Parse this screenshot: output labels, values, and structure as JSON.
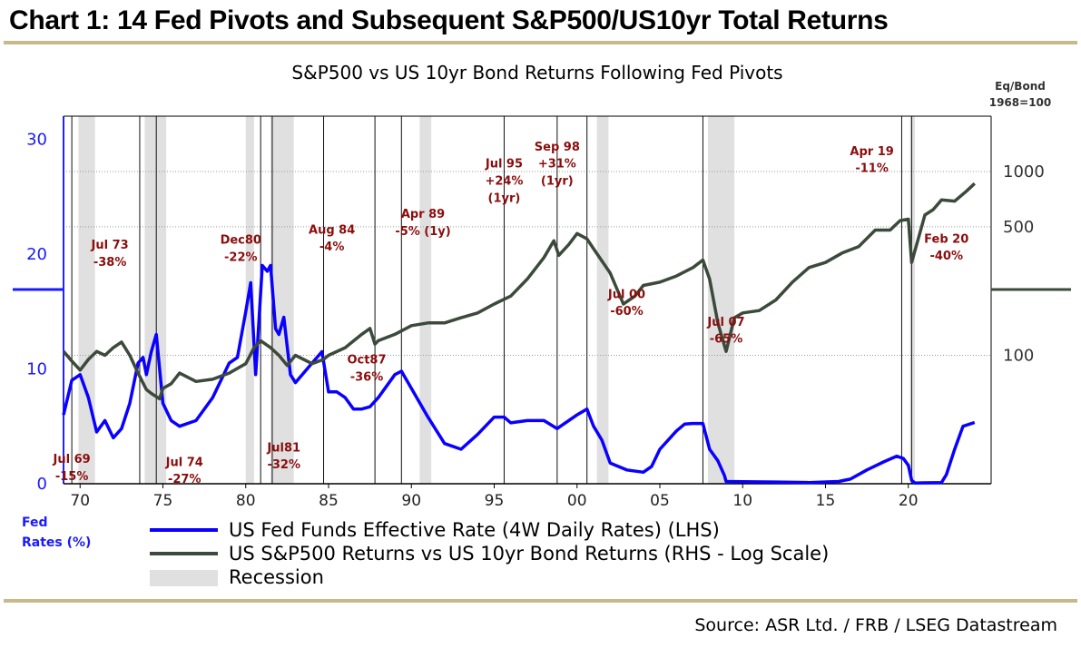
{
  "header": {
    "title": "Chart 1: 14 Fed Pivots and Subsequent S&P500/US10yr Total Returns"
  },
  "footer": {
    "source": "Source: ASR Ltd. / FRB / LSEG Datastream"
  },
  "colors": {
    "fed": "#0a00ff",
    "ratio": "#3b4a3b",
    "recession": "#e0e0e0",
    "annotation": "#8b0d0d",
    "gold": "#c8b98a"
  },
  "chart_data": {
    "type": "line",
    "title": "S&P500 vs US 10yr Bond Returns Following Fed Pivots",
    "left_axis": {
      "label_line1": "Fed",
      "label_line2": "Rates (%)",
      "range": [
        0,
        32
      ],
      "ticks": [
        0,
        10,
        20,
        30
      ]
    },
    "right_axis": {
      "label_line1": "Eq/Bond",
      "label_line2": "1968=100",
      "scale": "log",
      "range": [
        20,
        2000
      ],
      "ticks": [
        {
          "value": 100,
          "label": "100"
        },
        {
          "value": 500,
          "label": "500"
        },
        {
          "value": 1000,
          "label": "1000"
        }
      ]
    },
    "x_axis": {
      "range": [
        1969,
        2025
      ],
      "ticks": [
        {
          "value": 1970,
          "label": "70"
        },
        {
          "value": 1975,
          "label": "75"
        },
        {
          "value": 1980,
          "label": "80"
        },
        {
          "value": 1985,
          "label": "85"
        },
        {
          "value": 1990,
          "label": "90"
        },
        {
          "value": 1995,
          "label": "95"
        },
        {
          "value": 2000,
          "label": "00"
        },
        {
          "value": 2005,
          "label": "05"
        },
        {
          "value": 2010,
          "label": "10"
        },
        {
          "value": 2015,
          "label": "15"
        },
        {
          "value": 2020,
          "label": "20"
        }
      ]
    },
    "recessions": [
      [
        1969.9,
        1970.9
      ],
      [
        1973.9,
        1975.2
      ],
      [
        1980.0,
        1980.5
      ],
      [
        1981.5,
        1982.9
      ],
      [
        1990.5,
        1991.2
      ],
      [
        2001.2,
        2001.9
      ],
      [
        2007.9,
        2009.5
      ],
      [
        2020.1,
        2020.4
      ]
    ],
    "pivots": [
      1969.5,
      1973.6,
      1974.6,
      1980.9,
      1981.6,
      1984.7,
      1987.8,
      1989.4,
      1995.6,
      1998.8,
      2000.6,
      2007.6,
      2019.6,
      2020.2
    ],
    "annotations": [
      {
        "date": 1969.5,
        "y_val": 26,
        "lines": [
          "Jul 69",
          "-15%"
        ]
      },
      {
        "date": 1971.8,
        "y_val": 380,
        "lines": [
          "Jul 73",
          "-38%"
        ]
      },
      {
        "date": 1976.3,
        "y_val": 25,
        "lines": [
          "Jul 74",
          "-27%"
        ]
      },
      {
        "date": 1979.7,
        "y_val": 405,
        "lines": [
          "Dec80",
          "-22%"
        ]
      },
      {
        "date": 1982.3,
        "y_val": 30,
        "lines": [
          "Jul81",
          "-32%"
        ]
      },
      {
        "date": 1985.2,
        "y_val": 460,
        "lines": [
          "Aug 84",
          "-4%"
        ]
      },
      {
        "date": 1987.3,
        "y_val": 90,
        "lines": [
          "Oct87",
          "-36%"
        ]
      },
      {
        "date": 1990.7,
        "y_val": 560,
        "lines": [
          "Apr 89",
          "-5% (1y)"
        ]
      },
      {
        "date": 1995.6,
        "y_val": 1050,
        "lines": [
          "Jul 95",
          "+24%",
          "(1yr)"
        ]
      },
      {
        "date": 1998.8,
        "y_val": 1300,
        "lines": [
          "Sep 98",
          "+31%",
          "(1yr)"
        ]
      },
      {
        "date": 2003.0,
        "y_val": 205,
        "lines": [
          "Jul 00",
          "-60%"
        ]
      },
      {
        "date": 2009.0,
        "y_val": 145,
        "lines": [
          "Jul 07",
          "-65%"
        ]
      },
      {
        "date": 2017.8,
        "y_val": 1230,
        "lines": [
          "Apr 19",
          "-11%"
        ]
      },
      {
        "date": 2022.3,
        "y_val": 410,
        "lines": [
          "Feb 20",
          "-40%"
        ]
      }
    ],
    "series": [
      {
        "name": "US Fed Funds Effective Rate (4W Daily Rates) (LHS)",
        "axis": "left",
        "x": [
          1969.0,
          1969.5,
          1970.0,
          1970.5,
          1971.0,
          1971.5,
          1972.0,
          1972.5,
          1973.0,
          1973.5,
          1973.8,
          1974.0,
          1974.3,
          1974.6,
          1975.0,
          1975.5,
          1976.0,
          1977.0,
          1978.0,
          1979.0,
          1979.5,
          1980.0,
          1980.3,
          1980.6,
          1981.0,
          1981.3,
          1981.5,
          1981.8,
          1982.0,
          1982.3,
          1982.7,
          1983.0,
          1984.0,
          1984.6,
          1985.0,
          1985.5,
          1986.0,
          1986.5,
          1987.0,
          1987.5,
          1988.0,
          1989.0,
          1989.4,
          1990.0,
          1991.0,
          1992.0,
          1993.0,
          1994.0,
          1995.0,
          1995.6,
          1996.0,
          1997.0,
          1998.0,
          1998.8,
          1999.0,
          2000.0,
          2000.6,
          2001.0,
          2001.5,
          2002.0,
          2003.0,
          2004.0,
          2004.5,
          2005.0,
          2006.0,
          2006.5,
          2007.0,
          2007.6,
          2008.0,
          2008.5,
          2008.9,
          2009.0,
          2010.0,
          2012.0,
          2014.0,
          2015.8,
          2016.5,
          2017.5,
          2018.5,
          2019.3,
          2019.7,
          2020.0,
          2020.2,
          2020.4,
          2021.0,
          2022.0,
          2022.3,
          2022.8,
          2023.3,
          2024.0
        ],
        "values": [
          6.0,
          9.0,
          9.5,
          7.5,
          4.5,
          5.5,
          4.0,
          4.8,
          7.0,
          10.5,
          11.0,
          9.5,
          11.5,
          13.0,
          7.0,
          5.5,
          5.0,
          5.5,
          7.5,
          10.5,
          11.0,
          15.0,
          17.5,
          9.5,
          19.0,
          18.5,
          19.0,
          13.5,
          13.0,
          14.5,
          9.5,
          8.8,
          10.5,
          11.5,
          8.0,
          8.0,
          7.5,
          6.5,
          6.5,
          6.7,
          7.5,
          9.5,
          9.8,
          8.3,
          5.8,
          3.5,
          3.0,
          4.3,
          5.8,
          5.8,
          5.3,
          5.5,
          5.5,
          4.8,
          5.0,
          6.0,
          6.5,
          5.0,
          3.8,
          1.8,
          1.2,
          1.0,
          1.5,
          3.0,
          4.6,
          5.2,
          5.25,
          5.25,
          3.0,
          2.0,
          0.7,
          0.2,
          0.18,
          0.15,
          0.1,
          0.2,
          0.4,
          1.2,
          1.9,
          2.4,
          2.2,
          1.6,
          0.3,
          0.06,
          0.08,
          0.1,
          0.8,
          3.0,
          5.0,
          5.33
        ]
      },
      {
        "name": "US S&P500 Returns  vs US 10yr Bond Returns (RHS - Log Scale)",
        "axis": "right",
        "x": [
          1969.0,
          1969.5,
          1970.0,
          1970.5,
          1971.0,
          1971.5,
          1972.0,
          1972.5,
          1973.0,
          1973.5,
          1974.0,
          1974.3,
          1974.8,
          1975.0,
          1975.5,
          1976.0,
          1977.0,
          1978.0,
          1979.0,
          1980.0,
          1980.5,
          1980.9,
          1981.5,
          1982.0,
          1982.5,
          1983.0,
          1984.0,
          1984.7,
          1985.0,
          1986.0,
          1987.0,
          1987.5,
          1987.8,
          1988.0,
          1989.0,
          1990.0,
          1991.0,
          1992.0,
          1993.0,
          1994.0,
          1995.0,
          1996.0,
          1997.0,
          1998.0,
          1998.6,
          1998.9,
          1999.5,
          2000.0,
          2000.6,
          2001.0,
          2002.0,
          2002.8,
          2003.5,
          2004.0,
          2005.0,
          2006.0,
          2007.0,
          2007.6,
          2008.0,
          2008.5,
          2009.0,
          2009.5,
          2010.0,
          2011.0,
          2012.0,
          2013.0,
          2014.0,
          2015.0,
          2016.0,
          2017.0,
          2018.0,
          2018.9,
          2019.5,
          2020.0,
          2020.2,
          2020.6,
          2021.0,
          2021.5,
          2022.0,
          2022.8,
          2023.5,
          2024.0
        ],
        "values": [
          105,
          93,
          83,
          95,
          105,
          100,
          110,
          118,
          100,
          80,
          65,
          62,
          58,
          66,
          70,
          80,
          72,
          74,
          80,
          90,
          110,
          120,
          110,
          100,
          88,
          100,
          90,
          95,
          100,
          110,
          130,
          140,
          115,
          120,
          130,
          145,
          150,
          150,
          160,
          170,
          190,
          210,
          260,
          340,
          420,
          350,
          400,
          460,
          430,
          380,
          280,
          190,
          210,
          240,
          250,
          270,
          300,
          330,
          260,
          150,
          105,
          160,
          170,
          175,
          200,
          250,
          300,
          320,
          360,
          390,
          480,
          480,
          540,
          550,
          320,
          430,
          580,
          620,
          700,
          690,
          780,
          860
        ]
      }
    ],
    "legend": [
      {
        "label": "US Fed Funds Effective Rate (4W Daily Rates) (LHS)"
      },
      {
        "label": "US S&P500 Returns  vs US 10yr Bond Returns (RHS - Log Scale)"
      },
      {
        "label": "Recession"
      }
    ]
  }
}
